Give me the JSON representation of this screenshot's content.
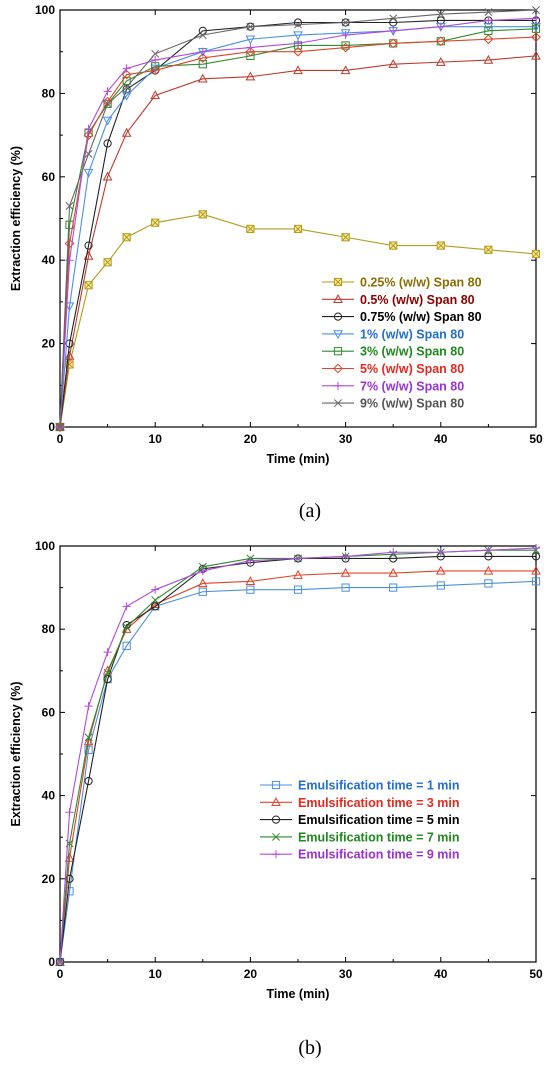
{
  "chart_data": [
    {
      "type": "line",
      "panel_label": "(a)",
      "xlabel": "Time (min)",
      "ylabel": "Extraction efficiency (%)",
      "xlim": [
        0,
        50
      ],
      "ylim": [
        0,
        100
      ],
      "xticks": [
        0,
        10,
        20,
        30,
        40,
        50
      ],
      "yticks": [
        0,
        20,
        40,
        60,
        80,
        100
      ],
      "grid": false,
      "legend_position": "right-middle",
      "x": [
        0,
        1,
        3,
        5,
        7,
        10,
        15,
        20,
        25,
        30,
        35,
        40,
        45,
        50
      ],
      "series": [
        {
          "name": "0.25% (w/w) Span 80",
          "color": "#b59a1c",
          "text_color": "#8a6d00",
          "marker": "boxx",
          "values": [
            0,
            15,
            34,
            39.5,
            45.5,
            49,
            51,
            47.5,
            47.5,
            45.5,
            43.5,
            43.5,
            42.5,
            41.5
          ]
        },
        {
          "name": "0.5% (w/w) Span 80",
          "color": "#c0392b",
          "text_color": "#8b0000",
          "marker": "triangle-up",
          "values": [
            0,
            17,
            41,
            60,
            70.5,
            79.5,
            83.5,
            84,
            85.5,
            85.5,
            87,
            87.5,
            88,
            89
          ]
        },
        {
          "name": "0.75% (w/w) Span 80",
          "color": "#222222",
          "text_color": "#000000",
          "marker": "circle",
          "values": [
            0,
            20,
            43.5,
            68,
            81,
            85.5,
            95,
            96,
            97,
            97,
            97,
            97.5,
            97.5,
            97.5
          ]
        },
        {
          "name": "1% (w/w) Span 80",
          "color": "#4a90e2",
          "text_color": "#1f6fd1",
          "marker": "triangle-down",
          "values": [
            0,
            29,
            61,
            73.5,
            79.5,
            86,
            90,
            93,
            94,
            94.5,
            95,
            96,
            96,
            96
          ]
        },
        {
          "name": "3% (w/w) Span 80",
          "color": "#2e8b2e",
          "text_color": "#1e8a1e",
          "marker": "square",
          "values": [
            0,
            48.5,
            70.5,
            77.5,
            83,
            86.5,
            87,
            89,
            91.5,
            91.5,
            92,
            92.5,
            95,
            95.5
          ]
        },
        {
          "name": "5% (w/w) Span 80",
          "color": "#e0442a",
          "text_color": "#e8281e",
          "marker": "diamond",
          "values": [
            0,
            44,
            70,
            78,
            84.5,
            85.5,
            88.5,
            90,
            90,
            91,
            92,
            92.5,
            93,
            93.5
          ]
        },
        {
          "name": "7% (w/w) Span 80",
          "color": "#b04ae0",
          "text_color": "#9b30d9",
          "marker": "plus",
          "values": [
            0,
            40,
            71.5,
            80.5,
            86,
            88,
            90,
            91,
            92,
            94,
            95,
            96,
            97.5,
            98
          ]
        },
        {
          "name": "9% (w/w) Span 80",
          "color": "#666666",
          "text_color": "#555555",
          "marker": "x",
          "values": [
            0,
            53,
            65.5,
            77.5,
            81.5,
            89.5,
            94,
            96,
            96.5,
            97,
            98,
            99,
            99.5,
            100
          ]
        }
      ]
    },
    {
      "type": "line",
      "panel_label": "(b)",
      "xlabel": "Time (min)",
      "ylabel": "Extraction efficiency (%)",
      "xlim": [
        0,
        50
      ],
      "ylim": [
        0,
        100
      ],
      "xticks": [
        0,
        10,
        20,
        30,
        40,
        50
      ],
      "yticks": [
        0,
        20,
        40,
        60,
        80,
        100
      ],
      "grid": false,
      "legend_position": "right-middle",
      "x": [
        0,
        1,
        3,
        5,
        7,
        10,
        15,
        20,
        25,
        30,
        35,
        40,
        45,
        50
      ],
      "series": [
        {
          "name": "Emulsification time = 1 min",
          "color": "#4a90e2",
          "text_color": "#1f6fd1",
          "marker": "square",
          "values": [
            0,
            17,
            51,
            68,
            76,
            85.5,
            89,
            89.5,
            89.5,
            90,
            90,
            90.5,
            91,
            91.5
          ]
        },
        {
          "name": "Emulsification time = 3 min",
          "color": "#e0442a",
          "text_color": "#e8281e",
          "marker": "triangle-up",
          "values": [
            0,
            25,
            53,
            70,
            80,
            86,
            91,
            91.5,
            93,
            93.5,
            93.5,
            94,
            94,
            94
          ]
        },
        {
          "name": "Emulsification time = 5 min",
          "color": "#222222",
          "text_color": "#000000",
          "marker": "circle",
          "values": [
            0,
            20,
            43.5,
            68,
            81,
            85.5,
            94.5,
            96,
            97,
            97,
            97,
            97.5,
            97.5,
            97.5
          ]
        },
        {
          "name": "Emulsification time = 7 min",
          "color": "#2e8b2e",
          "text_color": "#1e8a1e",
          "marker": "x",
          "values": [
            0,
            28.5,
            54,
            69.5,
            80.5,
            87,
            95,
            97,
            97,
            97.5,
            98,
            98.5,
            99,
            99
          ]
        },
        {
          "name": "Emulsification time = 9 min",
          "color": "#b04ae0",
          "text_color": "#9b30d9",
          "marker": "plus",
          "values": [
            0,
            36,
            61.5,
            74.5,
            85.5,
            89.5,
            94,
            96.5,
            97,
            97.5,
            98.5,
            98.5,
            99,
            99.5
          ]
        }
      ]
    }
  ]
}
